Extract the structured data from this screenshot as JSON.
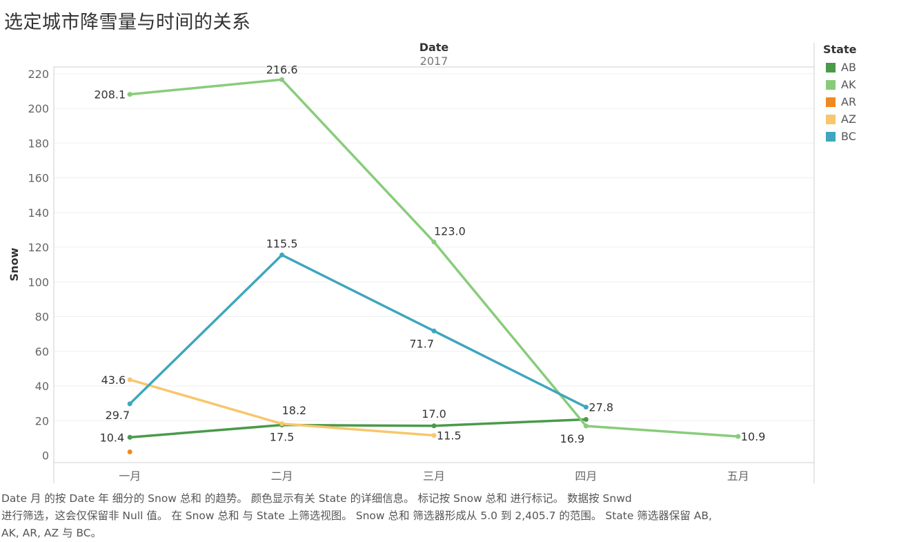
{
  "title": "选定城市降雪量与时间的关系",
  "chart_data": {
    "type": "line",
    "column_header": "Date",
    "column_subheader": "2017",
    "ylabel": "Snow",
    "categories": [
      "一月",
      "二月",
      "三月",
      "四月",
      "五月"
    ],
    "y_ticks": [
      0,
      20,
      40,
      60,
      80,
      100,
      120,
      140,
      160,
      180,
      200,
      220
    ],
    "ylim": [
      0,
      230
    ],
    "grid": true,
    "legend_placement": "right",
    "legend_title": "State",
    "series": [
      {
        "name": "AB",
        "color": "#4a9a4a",
        "values": [
          10.4,
          17.5,
          17.0,
          20.7,
          null
        ],
        "labels": [
          "10.4",
          "",
          "17.0",
          "",
          ""
        ]
      },
      {
        "name": "AK",
        "color": "#88cc7a",
        "values": [
          208.1,
          216.6,
          123.0,
          16.9,
          10.9
        ],
        "labels": [
          "208.1",
          "216.6",
          "123.0",
          "16.9",
          "10.9"
        ]
      },
      {
        "name": "AR",
        "color": "#ef8a1e",
        "values": [
          2.0,
          null,
          null,
          null,
          null
        ],
        "labels": [
          "",
          "",
          "",
          "",
          ""
        ]
      },
      {
        "name": "AZ",
        "color": "#f8c66c",
        "values": [
          43.6,
          18.2,
          11.5,
          null,
          null
        ],
        "labels": [
          "43.6",
          "18.2",
          "11.5",
          "",
          ""
        ]
      },
      {
        "name": "BC",
        "color": "#3ea6bd",
        "values": [
          29.7,
          115.5,
          71.7,
          27.8,
          null
        ],
        "labels": [
          "29.7",
          "115.5",
          "71.7",
          "27.8",
          ""
        ]
      }
    ],
    "extra_labels": [
      {
        "category": "二月",
        "value": 17.5,
        "text": "17.5"
      }
    ]
  },
  "caption_lines": [
    "Date 月 的按 Date 年 细分的 Snow 总和 的趋势。 颜色显示有关 State 的详细信息。 标记按 Snow 总和 进行标记。 数据按 Snwd",
    "进行筛选，这会仅保留非 Null 值。 在 Snow 总和 与 State 上筛选视图。 Snow 总和 筛选器形成从 5.0 到 2,405.7 的范围。 State 筛选器保留 AB,",
    "AK, AR, AZ 与 BC。"
  ]
}
